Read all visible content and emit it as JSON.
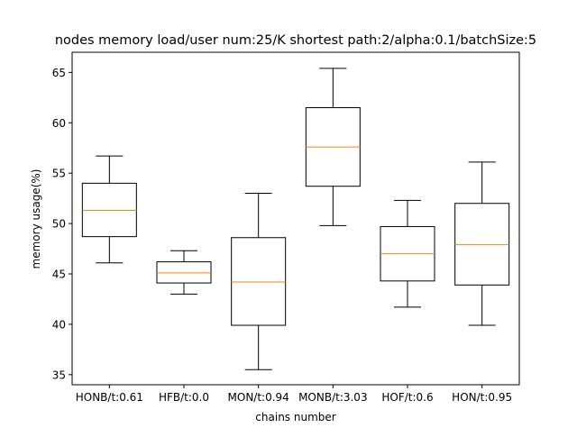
{
  "chart_data": {
    "type": "box",
    "title": "nodes memory load/user num:25/K shortest path:2/alpha:0.1/batchSize:5",
    "xlabel": "chains number",
    "ylabel": "memory usage(%)",
    "ylim": [
      34,
      67
    ],
    "yticks": [
      35,
      40,
      45,
      50,
      55,
      60,
      65
    ],
    "grid": false,
    "categories": [
      "HONB/t:0.61",
      "HFB/t:0.0",
      "MON/t:0.94",
      "MONB/t:3.03",
      "HOF/t:0.6",
      "HON/t:0.95"
    ],
    "boxes": [
      {
        "whisker_low": 46.1,
        "q1": 48.7,
        "median": 51.3,
        "q3": 54.0,
        "whisker_high": 56.7
      },
      {
        "whisker_low": 43.0,
        "q1": 44.1,
        "median": 45.1,
        "q3": 46.2,
        "whisker_high": 47.3
      },
      {
        "whisker_low": 35.5,
        "q1": 39.9,
        "median": 44.2,
        "q3": 48.6,
        "whisker_high": 53.0
      },
      {
        "whisker_low": 49.8,
        "q1": 53.7,
        "median": 57.6,
        "q3": 61.5,
        "whisker_high": 65.4
      },
      {
        "whisker_low": 41.7,
        "q1": 44.3,
        "median": 47.0,
        "q3": 49.7,
        "whisker_high": 52.3
      },
      {
        "whisker_low": 39.9,
        "q1": 43.9,
        "median": 47.9,
        "q3": 52.0,
        "whisker_high": 56.1
      }
    ],
    "colors": {
      "box": "#000000",
      "median": "#ff7f0e",
      "background": "#ffffff"
    }
  }
}
